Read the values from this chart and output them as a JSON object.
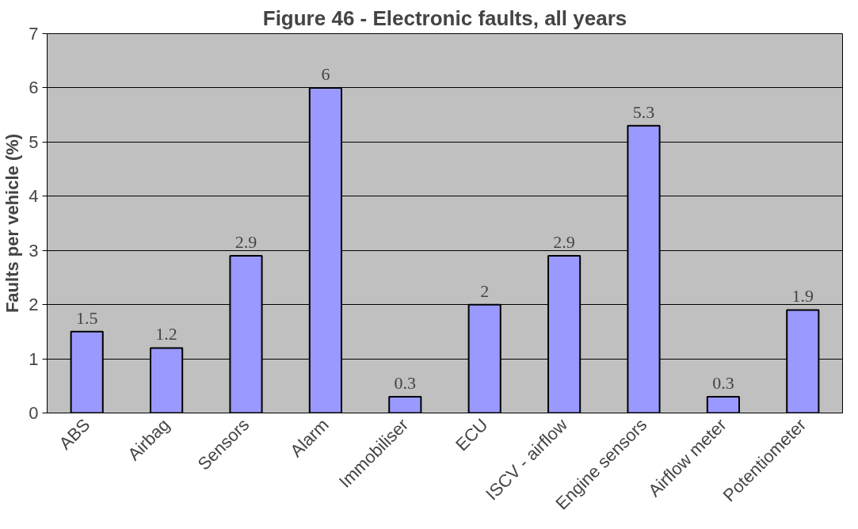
{
  "chart_data": {
    "type": "bar",
    "title": "Figure 46 - Electronic faults, all years",
    "ylabel": "Faults per vehicle (%)",
    "categories": [
      "ABS",
      "Airbag",
      "Sensors",
      "Alarm",
      "Immobiliser",
      "ECU",
      "ISCV - airflow",
      "Engine sensors",
      "Airflow meter",
      "Potentiometer"
    ],
    "values": [
      1.5,
      1.2,
      2.9,
      6,
      0.3,
      2,
      2.9,
      5.3,
      0.3,
      1.9
    ],
    "color": "#9999ff",
    "ylim": [
      0,
      7
    ],
    "yticks": [
      0,
      1,
      2,
      3,
      4,
      5,
      6,
      7
    ],
    "grid": "y",
    "data_labels": true
  }
}
